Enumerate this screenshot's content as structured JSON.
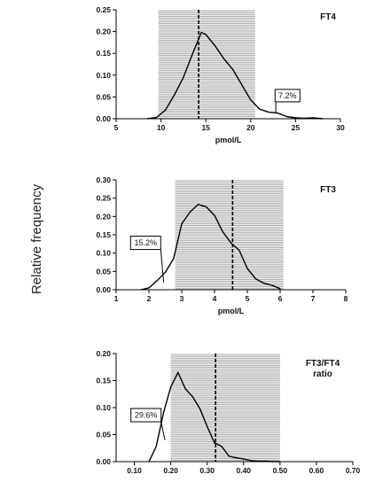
{
  "figure": {
    "ylabel": "Relative frequency"
  },
  "chart_data": [
    {
      "type": "line",
      "title": "FT4",
      "xlabel": "pmol/L",
      "ylabel": "Relative frequency",
      "xlim": [
        5,
        30
      ],
      "ylim": [
        0,
        0.25
      ],
      "xticks": [
        5,
        10,
        15,
        20,
        25,
        30
      ],
      "yticks": [
        0.0,
        0.05,
        0.1,
        0.15,
        0.2,
        0.25
      ],
      "xtick_labels": [
        "5",
        "10",
        "15",
        "20",
        "25",
        "30"
      ],
      "ytick_labels": [
        "0.00",
        "0.05",
        "0.10",
        "0.15",
        "0.20",
        "0.25"
      ],
      "shaded_range": [
        9.7,
        20.5
      ],
      "reference_line": 14.2,
      "grid": false,
      "series": [
        {
          "x": [
            8.5,
            9.5,
            10.5,
            11.5,
            12.5,
            13.5,
            14.5,
            15.0,
            16.0,
            17.0,
            18.0,
            19.0,
            20.0,
            21.0,
            22.0,
            23.0,
            24.0,
            25.0,
            26.0,
            27.0,
            28.0
          ],
          "values": [
            0.0,
            0.003,
            0.02,
            0.055,
            0.095,
            0.148,
            0.198,
            0.193,
            0.168,
            0.138,
            0.113,
            0.078,
            0.043,
            0.022,
            0.015,
            0.013,
            0.005,
            0.002,
            0.001,
            0.002,
            0.0
          ]
        }
      ],
      "annotations": [
        {
          "text": "7.2%",
          "x": 24.1,
          "y": 0.053,
          "pointer_to": [
            22.8,
            0.012
          ]
        }
      ]
    },
    {
      "type": "line",
      "title": "FT3",
      "xlabel": "pmol/L",
      "ylabel": "Relative frequency",
      "xlim": [
        1,
        8
      ],
      "ylim": [
        0,
        0.3
      ],
      "xticks": [
        1,
        2,
        3,
        4,
        5,
        6,
        7,
        8
      ],
      "yticks": [
        0.0,
        0.05,
        0.1,
        0.15,
        0.2,
        0.25,
        0.3
      ],
      "xtick_labels": [
        "1",
        "2",
        "3",
        "4",
        "5",
        "6",
        "7",
        "8"
      ],
      "ytick_labels": [
        "0.00",
        "0.05",
        "0.10",
        "0.15",
        "0.20",
        "0.25",
        "0.30"
      ],
      "shaded_range": [
        2.8,
        6.1
      ],
      "reference_line": 4.55,
      "grid": false,
      "series": [
        {
          "x": [
            1.75,
            2.0,
            2.25,
            2.5,
            2.75,
            3.0,
            3.25,
            3.5,
            3.75,
            4.0,
            4.25,
            4.5,
            4.75,
            5.0,
            5.25,
            5.5,
            5.75,
            6.0
          ],
          "values": [
            0.0,
            0.005,
            0.025,
            0.048,
            0.085,
            0.18,
            0.212,
            0.233,
            0.226,
            0.203,
            0.158,
            0.128,
            0.108,
            0.058,
            0.03,
            0.018,
            0.012,
            0.003
          ]
        }
      ],
      "annotations": [
        {
          "text": "15.2%",
          "x": 1.9,
          "y": 0.128,
          "pointer_to": [
            2.45,
            0.02
          ]
        }
      ]
    },
    {
      "type": "line",
      "title": "FT3/FT4\nratio",
      "xlabel": "",
      "ylabel": "Relative frequency",
      "xlim": [
        0.05,
        0.7
      ],
      "ylim": [
        0,
        0.2
      ],
      "xticks": [
        0.1,
        0.2,
        0.3,
        0.4,
        0.5,
        0.6,
        0.7
      ],
      "yticks": [
        0.0,
        0.05,
        0.1,
        0.15,
        0.2
      ],
      "xtick_labels": [
        "0.10",
        "0.20",
        "0.30",
        "0.40",
        "0.50",
        "0.60",
        "0.70"
      ],
      "ytick_labels": [
        "0.00",
        "0.05",
        "0.10",
        "0.15",
        "0.20"
      ],
      "shaded_range": [
        0.2,
        0.5
      ],
      "reference_line": 0.323,
      "grid": false,
      "series": [
        {
          "x": [
            0.14,
            0.16,
            0.18,
            0.2,
            0.22,
            0.24,
            0.26,
            0.28,
            0.3,
            0.32,
            0.34,
            0.36,
            0.38,
            0.4,
            0.42,
            0.44,
            0.46,
            0.48,
            0.5
          ],
          "values": [
            0.0,
            0.028,
            0.09,
            0.138,
            0.165,
            0.135,
            0.12,
            0.098,
            0.065,
            0.035,
            0.028,
            0.01,
            0.007,
            0.005,
            0.002,
            0.001,
            0.001,
            0.0,
            0.0
          ]
        }
      ],
      "annotations": [
        {
          "text": "29.6%",
          "x": 0.132,
          "y": 0.086,
          "pointer_to": [
            0.184,
            0.04
          ]
        }
      ]
    }
  ]
}
